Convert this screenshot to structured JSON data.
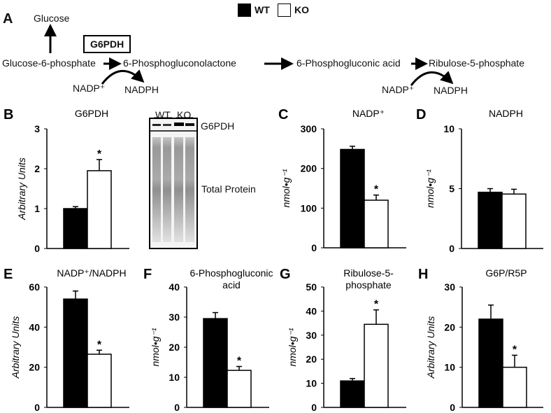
{
  "legend": {
    "wt": "WT",
    "ko": "KO",
    "colors": {
      "wt": "#000000",
      "ko": "#ffffff"
    }
  },
  "pathway": {
    "panel": "A",
    "glucose": "Glucose",
    "enzyme": "G6PDH",
    "g6p": "Glucose-6-phosphate",
    "lactone": "6-Phosphogluconolactone",
    "acid": "6-Phosphogluconic acid",
    "r5p": "Ribulose-5-phosphate",
    "nadp1": "NADP⁺",
    "nadph1": "NADPH",
    "nadp2": "NADP⁺",
    "nadph2": "NADPH"
  },
  "blot": {
    "wt": "WT",
    "ko": "KO",
    "band": "G6PDH",
    "total": "Total Protein"
  },
  "chart_data": [
    {
      "panel": "B",
      "type": "bar",
      "title": "G6PDH",
      "ylabel": "Arbitrary Units",
      "ylim": [
        0,
        3
      ],
      "ticks": [
        0,
        1,
        2,
        3
      ],
      "categories": [
        "WT",
        "KO"
      ],
      "values": [
        1.0,
        1.95
      ],
      "errors": [
        0.05,
        0.28
      ],
      "significant": [
        false,
        true
      ]
    },
    {
      "panel": "C",
      "type": "bar",
      "title": "NADP⁺",
      "ylabel": "nmol•g⁻¹",
      "ylim": [
        0,
        300
      ],
      "ticks": [
        0,
        100,
        200,
        300
      ],
      "categories": [
        "WT",
        "KO"
      ],
      "values": [
        248,
        120
      ],
      "errors": [
        8,
        13
      ],
      "significant": [
        false,
        true
      ]
    },
    {
      "panel": "D",
      "type": "bar",
      "title": "NADPH",
      "ylabel": "nmol•g⁻¹",
      "ylim": [
        0,
        10
      ],
      "ticks": [
        0,
        5,
        10
      ],
      "categories": [
        "WT",
        "KO"
      ],
      "values": [
        4.7,
        4.55
      ],
      "errors": [
        0.3,
        0.4
      ],
      "significant": [
        false,
        false
      ]
    },
    {
      "panel": "E",
      "type": "bar",
      "title": "NADP⁺/NADPH",
      "ylabel": "Arbitrary Units",
      "ylim": [
        0,
        60
      ],
      "ticks": [
        0,
        20,
        40,
        60
      ],
      "categories": [
        "WT",
        "KO"
      ],
      "values": [
        54,
        26.5
      ],
      "errors": [
        4,
        2
      ],
      "significant": [
        false,
        true
      ]
    },
    {
      "panel": "F",
      "type": "bar",
      "title": "6-Phosphogluconic acid",
      "ylabel": "nmol•g⁻¹",
      "ylim": [
        0,
        40
      ],
      "ticks": [
        0,
        10,
        20,
        30,
        40
      ],
      "categories": [
        "WT",
        "KO"
      ],
      "values": [
        29.5,
        12.3
      ],
      "errors": [
        2,
        1.3
      ],
      "significant": [
        false,
        true
      ]
    },
    {
      "panel": "G",
      "type": "bar",
      "title": "Ribulose-5-phosphate",
      "ylabel": "nmol•g⁻¹",
      "ylim": [
        0,
        50
      ],
      "ticks": [
        0,
        10,
        20,
        30,
        40,
        50
      ],
      "categories": [
        "WT",
        "KO"
      ],
      "values": [
        11,
        34.5
      ],
      "errors": [
        1,
        6
      ],
      "significant": [
        false,
        true
      ]
    },
    {
      "panel": "H",
      "type": "bar",
      "title": "G6P/R5P",
      "ylabel": "Arbitrary Units",
      "ylim": [
        0,
        30
      ],
      "ticks": [
        0,
        10,
        20,
        30
      ],
      "categories": [
        "WT",
        "KO"
      ],
      "values": [
        22,
        10
      ],
      "errors": [
        3.5,
        3
      ],
      "significant": [
        false,
        true
      ]
    }
  ]
}
